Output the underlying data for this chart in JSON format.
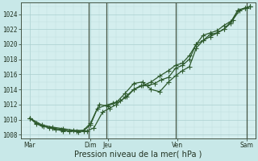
{
  "xlabel": "Pression niveau de la mer( hPa )",
  "bg_color": "#c8e8e8",
  "plot_bg_color": "#d4eeee",
  "grid_color_major": "#aacfcf",
  "grid_color_minor": "#c0dfdf",
  "line_color": "#2d5a2d",
  "ylim": [
    1007.5,
    1025.5
  ],
  "xlim": [
    0,
    13.5
  ],
  "yticks": [
    1008,
    1010,
    1012,
    1014,
    1016,
    1018,
    1020,
    1022,
    1024
  ],
  "xtick_labels": [
    "Mar",
    "",
    "",
    "",
    "Dim",
    "Jeu",
    "",
    "",
    "",
    "Ven",
    "",
    "",
    "",
    "Sam"
  ],
  "xtick_positions": [
    0.5,
    1.0,
    1.5,
    2.0,
    4.0,
    5.0,
    6.0,
    6.5,
    7.0,
    9.0,
    10.0,
    10.5,
    11.0,
    13.0
  ],
  "vline_positions": [
    3.9,
    4.9,
    8.9,
    13.0
  ],
  "vline_color": "#445544",
  "marker_size": 2.5,
  "linewidth": 0.9,
  "line1_x": [
    0.5,
    0.9,
    1.2,
    1.6,
    2.0,
    2.4,
    2.8,
    3.2,
    3.6,
    4.0,
    4.4,
    4.9,
    5.3,
    5.7,
    6.1,
    6.5,
    6.9,
    7.3,
    7.7,
    8.1,
    8.5,
    8.9,
    9.3,
    9.7,
    10.1,
    10.5,
    10.9,
    11.3,
    11.7,
    12.1,
    12.5,
    12.9,
    13.2
  ],
  "line1_y": [
    1010.2,
    1009.5,
    1009.2,
    1008.9,
    1008.7,
    1008.5,
    1008.5,
    1008.5,
    1008.6,
    1009.5,
    1011.5,
    1011.9,
    1012.2,
    1012.5,
    1013.0,
    1014.0,
    1014.5,
    1014.5,
    1014.8,
    1015.3,
    1015.6,
    1016.8,
    1017.2,
    1018.0,
    1020.0,
    1020.5,
    1021.3,
    1021.5,
    1022.0,
    1023.0,
    1024.5,
    1024.8,
    1025.0
  ],
  "line2_x": [
    0.5,
    1.2,
    1.8,
    2.4,
    3.0,
    3.6,
    4.0,
    4.5,
    5.0,
    5.5,
    6.0,
    6.5,
    7.0,
    7.5,
    8.0,
    8.5,
    8.9,
    9.3,
    9.7,
    10.1,
    10.5,
    10.9,
    11.3,
    11.7,
    12.1,
    12.5,
    12.9,
    13.2
  ],
  "line2_y": [
    1010.2,
    1009.3,
    1009.0,
    1008.8,
    1008.6,
    1008.5,
    1009.3,
    1012.0,
    1011.8,
    1012.3,
    1013.5,
    1014.8,
    1015.0,
    1014.0,
    1013.7,
    1015.0,
    1015.8,
    1016.5,
    1017.0,
    1019.5,
    1020.5,
    1021.0,
    1021.5,
    1022.0,
    1022.8,
    1024.5,
    1024.8,
    1025.0
  ],
  "line3_x": [
    0.5,
    0.9,
    1.3,
    1.8,
    2.3,
    2.8,
    3.3,
    3.8,
    4.2,
    4.7,
    5.1,
    5.5,
    6.0,
    6.5,
    7.0,
    7.5,
    8.0,
    8.5,
    8.9,
    9.3,
    9.7,
    10.1,
    10.5,
    10.9,
    11.3,
    11.7,
    12.2,
    12.6,
    13.0,
    13.2
  ],
  "line3_y": [
    1010.2,
    1009.4,
    1009.1,
    1008.9,
    1008.7,
    1008.5,
    1008.4,
    1008.5,
    1008.9,
    1011.0,
    1011.5,
    1012.0,
    1013.0,
    1014.0,
    1014.5,
    1015.0,
    1015.8,
    1016.5,
    1017.2,
    1017.5,
    1018.5,
    1020.0,
    1021.2,
    1021.5,
    1021.8,
    1022.5,
    1023.2,
    1024.5,
    1024.8,
    1025.0
  ]
}
